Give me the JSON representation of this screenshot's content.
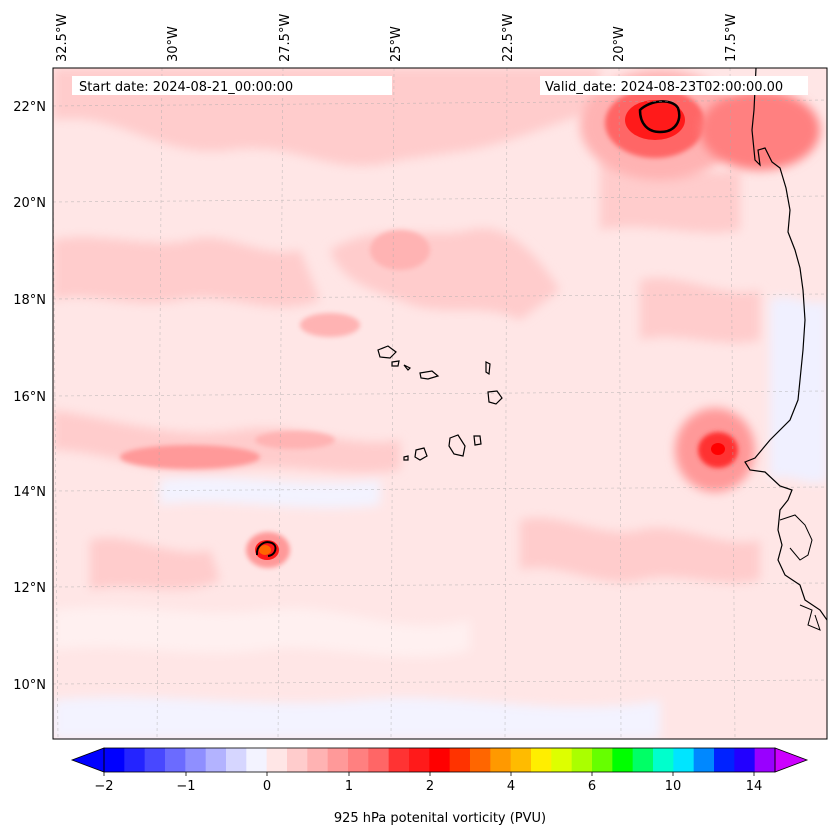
{
  "map": {
    "start_label": "Start date: 2024-08-21_00:00:00",
    "valid_label": "Valid_date: 2024-08-23T02:00:00.00",
    "lon_labels": [
      "32.5°W",
      "30°W",
      "27.5°W",
      "25°W",
      "22.5°W",
      "20°W",
      "17.5°W"
    ],
    "lat_labels": [
      "22°N",
      "20°N",
      "18°N",
      "16°N",
      "14°N",
      "12°N",
      "10°N"
    ],
    "background_color": "#ffe6e6",
    "coast_color": "#000000",
    "features": [
      "africa-coastline",
      "cape-verde-islands",
      "pv-contour-field"
    ]
  },
  "colorbar": {
    "label": "925 hPa potenital vorticity (PVU)",
    "tick_labels": [
      "−2",
      "−1",
      "0",
      "1",
      "2",
      "4",
      "6",
      "10",
      "14"
    ],
    "colors": [
      "#0000ff",
      "#2424ff",
      "#4848ff",
      "#6b6bff",
      "#8f8fff",
      "#b3b3ff",
      "#d6d6ff",
      "#f3f3ff",
      "#ffe6e6",
      "#ffcccc",
      "#ffb3b3",
      "#ff9999",
      "#ff8080",
      "#ff6666",
      "#ff3333",
      "#ff1a1a",
      "#ff0000",
      "#ff3300",
      "#ff6600",
      "#ff9900",
      "#ffbb00",
      "#ffee00",
      "#ddff00",
      "#aaff00",
      "#66ff00",
      "#00ff00",
      "#00ff66",
      "#00ffcc",
      "#00e5ff",
      "#0088ff",
      "#0022ff",
      "#2200ff",
      "#9900ff"
    ],
    "under_color": "#0000ff",
    "over_color": "#cc00ff"
  }
}
